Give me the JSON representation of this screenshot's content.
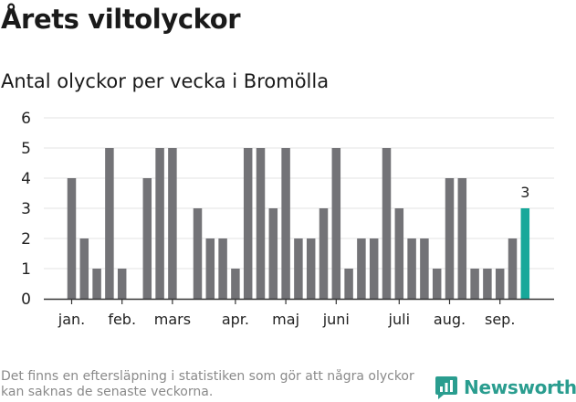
{
  "header": {
    "title": "Årets viltolyckor",
    "subtitle": "Antal olyckor per vecka i Bromölla"
  },
  "chart_data": {
    "type": "bar",
    "ylim": [
      0,
      6
    ],
    "yticks": [
      0,
      1,
      2,
      3,
      4,
      5,
      6
    ],
    "grid": true,
    "values": [
      4,
      2,
      1,
      5,
      1,
      0,
      4,
      5,
      5,
      0,
      3,
      2,
      2,
      1,
      5,
      5,
      3,
      5,
      2,
      2,
      3,
      5,
      1,
      2,
      2,
      5,
      3,
      2,
      2,
      1,
      4,
      4,
      1,
      1,
      1,
      2,
      3
    ],
    "month_labels": [
      {
        "label": "jan.",
        "week": 1
      },
      {
        "label": "feb.",
        "week": 5
      },
      {
        "label": "mars",
        "week": 9
      },
      {
        "label": "apr.",
        "week": 14
      },
      {
        "label": "maj",
        "week": 18
      },
      {
        "label": "juni",
        "week": 22
      },
      {
        "label": "juli",
        "week": 27
      },
      {
        "label": "aug.",
        "week": 31
      },
      {
        "label": "sep.",
        "week": 35
      }
    ],
    "highlight_index": 36,
    "highlight_label": "3",
    "colors": {
      "bar": "#737377",
      "highlight": "#17a89a",
      "grid": "#e3e3e3",
      "axis": "#333333"
    }
  },
  "footer": {
    "note": "Det finns en eftersläpning i statistiken som gör att några olyckor kan saknas de senaste veckorna.",
    "brand": "Newsworthy",
    "brand_icon": "newsworthy-logo-icon"
  }
}
